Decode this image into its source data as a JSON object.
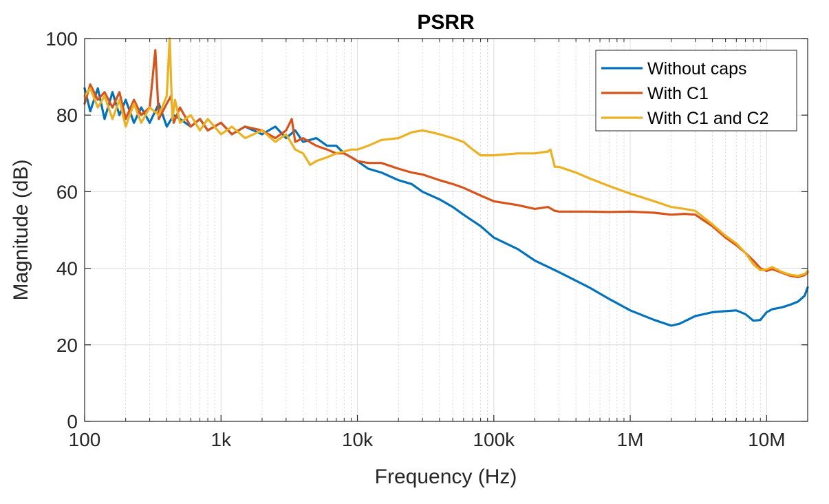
{
  "chart_data": {
    "type": "line",
    "title": "PSRR",
    "xlabel": "Frequency (Hz)",
    "ylabel": "Magnitude (dB)",
    "xscale": "log",
    "xlim": [
      100,
      20000000
    ],
    "ylim": [
      0,
      100
    ],
    "grid": true,
    "minor_grid_x": true,
    "legend_position": "top-right",
    "x_ticks": [
      {
        "value": 100,
        "label": "100"
      },
      {
        "value": 1000,
        "label": "1k"
      },
      {
        "value": 10000,
        "label": "10k"
      },
      {
        "value": 100000,
        "label": "100k"
      },
      {
        "value": 1000000,
        "label": "1M"
      },
      {
        "value": 10000000,
        "label": "10M"
      }
    ],
    "y_ticks": [
      {
        "value": 0,
        "label": "0"
      },
      {
        "value": 20,
        "label": "20"
      },
      {
        "value": 40,
        "label": "40"
      },
      {
        "value": 60,
        "label": "60"
      },
      {
        "value": 80,
        "label": "80"
      },
      {
        "value": 100,
        "label": "100"
      }
    ],
    "series": [
      {
        "name": "Without caps",
        "color": "#0072BD",
        "x": [
          100,
          110,
          125,
          140,
          160,
          180,
          200,
          230,
          260,
          300,
          350,
          400,
          450,
          500,
          600,
          700,
          800,
          1000,
          1200,
          1500,
          2000,
          2500,
          3000,
          3500,
          4000,
          5000,
          6000,
          7000,
          8000,
          9000,
          10000,
          12000,
          15000,
          20000,
          25000,
          30000,
          40000,
          50000,
          60000,
          80000,
          100000,
          150000,
          200000,
          300000,
          500000,
          700000,
          1000000,
          1500000,
          2000000,
          2300000,
          3000000,
          4000000,
          5000000,
          6000000,
          7000000,
          8000000,
          9000000,
          10000000,
          11000000,
          13000000,
          15000000,
          17000000,
          19000000,
          20000000
        ],
        "values": [
          87,
          81,
          87,
          79,
          86,
          80,
          84,
          78,
          82,
          78,
          83,
          77,
          80,
          79,
          77,
          79,
          76,
          78,
          75,
          77,
          75,
          77,
          74,
          76,
          73,
          74,
          72,
          72,
          70,
          69,
          68,
          66,
          65,
          63,
          62,
          60,
          58,
          56,
          54,
          51,
          48,
          45,
          42,
          39,
          35,
          32,
          29,
          26.5,
          25,
          25.5,
          27.5,
          28.5,
          28.8,
          29,
          28,
          26.3,
          26.5,
          28.5,
          29.3,
          29.8,
          30.5,
          31.3,
          32.8,
          35
        ]
      },
      {
        "name": "With C1",
        "color": "#D95319",
        "x": [
          100,
          110,
          125,
          140,
          160,
          180,
          200,
          230,
          260,
          300,
          330,
          350,
          400,
          430,
          450,
          500,
          600,
          700,
          800,
          1000,
          1200,
          1500,
          2000,
          2500,
          3000,
          3300,
          3500,
          4000,
          5000,
          6000,
          7000,
          8000,
          9000,
          10000,
          12000,
          15000,
          20000,
          25000,
          30000,
          40000,
          50000,
          60000,
          80000,
          100000,
          150000,
          200000,
          250000,
          280000,
          300000,
          500000,
          700000,
          1000000,
          1500000,
          2000000,
          2500000,
          3000000,
          4000000,
          5000000,
          6000000,
          7000000,
          8000000,
          9000000,
          10000000,
          11000000,
          13000000,
          15000000,
          17000000,
          19000000,
          20000000
        ],
        "values": [
          83,
          88,
          84,
          86,
          82,
          86,
          79,
          84,
          80,
          82,
          97,
          79,
          83,
          85,
          78,
          82,
          77,
          79,
          76,
          78,
          75,
          77,
          76,
          74,
          76,
          79,
          73,
          74,
          72,
          71,
          70,
          70,
          69,
          68,
          67.5,
          67.5,
          66,
          65,
          64.5,
          63,
          62,
          61,
          59,
          57.5,
          56.5,
          55.5,
          56,
          55,
          54.8,
          54.8,
          54.7,
          54.8,
          54.5,
          54,
          54.2,
          54,
          51,
          48,
          46,
          44,
          42,
          40,
          39.3,
          39.8,
          38.8,
          38,
          37.7,
          38.2,
          39
        ]
      },
      {
        "name": "With C1 and C2",
        "color": "#EDB120",
        "x": [
          100,
          110,
          125,
          140,
          160,
          180,
          200,
          230,
          260,
          300,
          350,
          400,
          420,
          440,
          460,
          500,
          600,
          700,
          800,
          1000,
          1200,
          1500,
          2000,
          2500,
          3000,
          3500,
          4000,
          4500,
          5000,
          6000,
          7000,
          8000,
          9000,
          10000,
          12000,
          15000,
          20000,
          25000,
          30000,
          35000,
          40000,
          50000,
          60000,
          70000,
          80000,
          100000,
          150000,
          200000,
          250000,
          260000,
          280000,
          300000,
          400000,
          500000,
          700000,
          1000000,
          1500000,
          2000000,
          2500000,
          3000000,
          4000000,
          5000000,
          6000000,
          7000000,
          8000000,
          9000000,
          10000000,
          11000000,
          13000000,
          15000000,
          17000000,
          19000000,
          20000000
        ],
        "values": [
          85,
          87,
          82,
          85,
          79,
          84,
          77,
          83,
          78,
          82,
          80,
          85,
          100,
          79,
          84,
          78,
          80,
          76,
          79,
          75,
          77,
          74,
          76,
          73,
          75,
          71,
          70,
          67,
          68,
          69,
          70,
          70.5,
          71,
          71,
          72,
          73.5,
          74,
          75.5,
          76,
          75.5,
          75,
          74,
          73,
          71,
          69.5,
          69.5,
          70,
          70,
          70.5,
          71,
          66.5,
          66.5,
          65,
          63.5,
          61.5,
          59.5,
          57.5,
          56,
          55.5,
          55,
          51.5,
          48.5,
          46.5,
          44,
          41,
          39.5,
          39.7,
          40.3,
          39,
          38.3,
          38,
          38.5,
          39.3
        ]
      }
    ]
  }
}
